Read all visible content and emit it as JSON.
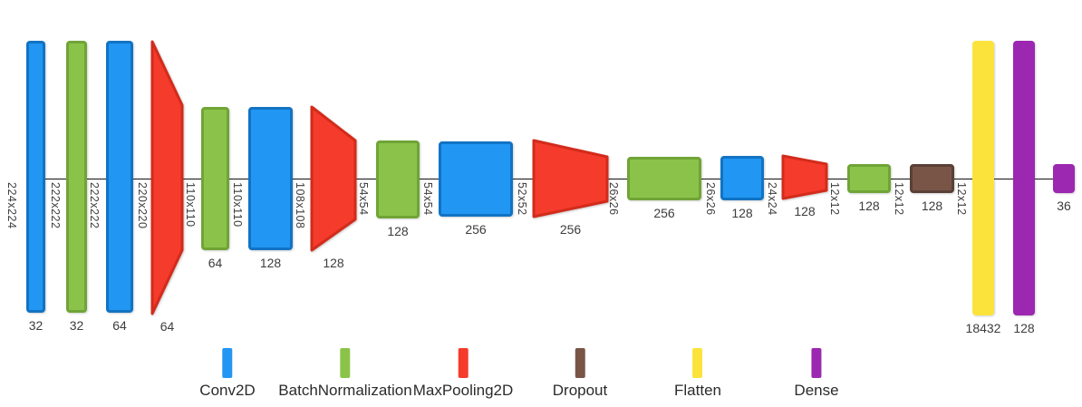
{
  "diagram": {
    "kind": "keras-model-architecture",
    "axis_color": "#111111",
    "type_colors": {
      "Conv2D": {
        "fill": "#2196F3",
        "border": "#1273C4"
      },
      "BatchNormalization": {
        "fill": "#8BC34A",
        "border": "#70A437"
      },
      "MaxPooling2D": {
        "fill": "#F43B2C",
        "border": "#D32B1B"
      },
      "Dropout": {
        "fill": "#795548",
        "border": "#5A4037"
      },
      "Flatten": {
        "fill": "#FCE33C",
        "border": "#FCE33C"
      },
      "Dense": {
        "fill": "#9C27B0",
        "border": "#9C27B0"
      }
    },
    "layers": [
      {
        "type": "Conv2D",
        "units": "32"
      },
      {
        "type": "BatchNormalization",
        "units": "32"
      },
      {
        "type": "Conv2D",
        "units": "64"
      },
      {
        "type": "MaxPooling2D",
        "units": "64"
      },
      {
        "type": "BatchNormalization",
        "units": "64"
      },
      {
        "type": "Conv2D",
        "units": "128"
      },
      {
        "type": "MaxPooling2D",
        "units": "128"
      },
      {
        "type": "BatchNormalization",
        "units": "128"
      },
      {
        "type": "Conv2D",
        "units": "256"
      },
      {
        "type": "MaxPooling2D",
        "units": "256"
      },
      {
        "type": "BatchNormalization",
        "units": "256"
      },
      {
        "type": "Conv2D",
        "units": "128"
      },
      {
        "type": "MaxPooling2D",
        "units": "128"
      },
      {
        "type": "BatchNormalization",
        "units": "128"
      },
      {
        "type": "Dropout",
        "units": "128"
      },
      {
        "type": "Flatten",
        "units": "18432"
      },
      {
        "type": "Dense",
        "units": "128"
      },
      {
        "type": "Dense",
        "units": "36"
      }
    ],
    "feature_map_dims": [
      "224x224",
      "222x222",
      "222x222",
      "220x220",
      "110x110",
      "110x110",
      "108x108",
      "54x54",
      "54x54",
      "52x52",
      "26x26",
      "26x26",
      "24x24",
      "12x12",
      "12x12",
      "12x12"
    ],
    "legend": [
      {
        "label": "Conv2D"
      },
      {
        "label": "BatchNormalization"
      },
      {
        "label": "MaxPooling2D"
      },
      {
        "label": "Dropout"
      },
      {
        "label": "Flatten"
      },
      {
        "label": "Dense"
      }
    ]
  }
}
